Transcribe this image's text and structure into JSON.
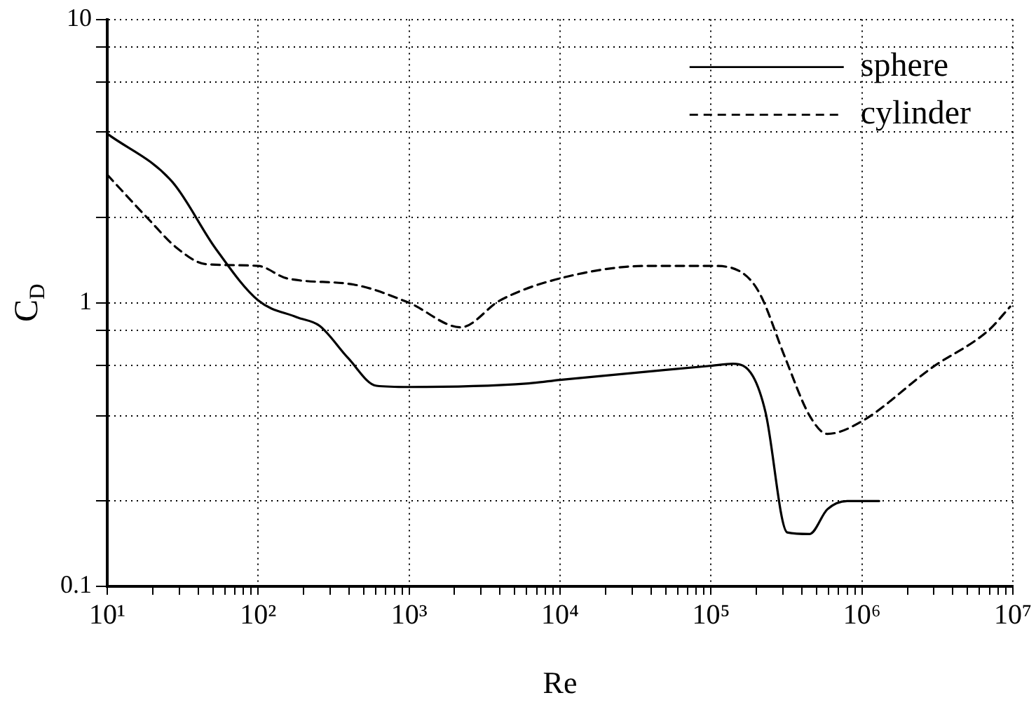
{
  "chart_data": {
    "type": "line",
    "xlabel": "Re",
    "ylabel": "C$_{D}$",
    "log": "xy",
    "grid": true,
    "legend": "top right",
    "marker": "none",
    "xlim": [
      10,
      10000000
    ],
    "ylim": [
      0.1,
      10
    ],
    "xticks": [
      {
        "value": 10,
        "label": "10¹"
      },
      {
        "value": 20,
        "label": null
      },
      {
        "value": 30,
        "label": null
      },
      {
        "value": 40,
        "label": null
      },
      {
        "value": 50,
        "label": null
      },
      {
        "value": 60,
        "label": null
      },
      {
        "value": 70,
        "label": null
      },
      {
        "value": 80,
        "label": null
      },
      {
        "value": 90,
        "label": null
      },
      {
        "value": 100,
        "label": "10²"
      },
      {
        "value": 200,
        "label": null
      },
      {
        "value": 300,
        "label": null
      },
      {
        "value": 400,
        "label": null
      },
      {
        "value": 500,
        "label": null
      },
      {
        "value": 600,
        "label": null
      },
      {
        "value": 700,
        "label": null
      },
      {
        "value": 800,
        "label": null
      },
      {
        "value": 900,
        "label": null
      },
      {
        "value": 1000,
        "label": "10³"
      },
      {
        "value": 2000,
        "label": null
      },
      {
        "value": 3000,
        "label": null
      },
      {
        "value": 4000,
        "label": null
      },
      {
        "value": 5000,
        "label": null
      },
      {
        "value": 6000,
        "label": null
      },
      {
        "value": 7000,
        "label": null
      },
      {
        "value": 8000,
        "label": null
      },
      {
        "value": 9000,
        "label": null
      },
      {
        "value": 10000,
        "label": "10⁴"
      },
      {
        "value": 20000,
        "label": null
      },
      {
        "value": 30000,
        "label": null
      },
      {
        "value": 40000,
        "label": null
      },
      {
        "value": 50000,
        "label": null
      },
      {
        "value": 60000,
        "label": null
      },
      {
        "value": 70000,
        "label": null
      },
      {
        "value": 80000,
        "label": null
      },
      {
        "value": 90000,
        "label": null
      },
      {
        "value": 100000,
        "label": "10⁵"
      },
      {
        "value": 200000,
        "label": null
      },
      {
        "value": 300000,
        "label": null
      },
      {
        "value": 400000,
        "label": null
      },
      {
        "value": 500000,
        "label": null
      },
      {
        "value": 600000,
        "label": null
      },
      {
        "value": 700000,
        "label": null
      },
      {
        "value": 800000,
        "label": null
      },
      {
        "value": 900000,
        "label": null
      },
      {
        "value": 1000000,
        "label": "10⁶"
      },
      {
        "value": 2000000,
        "label": null
      },
      {
        "value": 3000000,
        "label": null
      },
      {
        "value": 4000000,
        "label": null
      },
      {
        "value": 5000000,
        "label": null
      },
      {
        "value": 6000000,
        "label": null
      },
      {
        "value": 7000000,
        "label": null
      },
      {
        "value": 8000000,
        "label": null
      },
      {
        "value": 9000000,
        "label": null
      },
      {
        "value": 10000000,
        "label": "10⁷"
      }
    ],
    "yticks": [
      0.1,
      {
        "value": 0.2,
        "label": null
      },
      {
        "value": 0.4,
        "label": null
      },
      {
        "value": 0.6,
        "label": null
      },
      {
        "value": 0.8,
        "label": null
      },
      1,
      {
        "value": 2,
        "label": null
      },
      {
        "value": 4,
        "label": null
      },
      {
        "value": 6,
        "label": null
      },
      {
        "value": 8,
        "label": null
      },
      10
    ],
    "series": [
      {
        "name": "sphere",
        "color": "#000000",
        "line_style": "solid",
        "x": [
          10,
          27,
          52,
          100,
          180,
          255,
          393,
          607,
          1000,
          6200,
          10000,
          100000,
          140000,
          190000,
          230000,
          320000,
          450000,
          590000,
          800000,
          1300000
        ],
        "values": [
          3.95,
          2.67,
          1.56,
          1.02,
          0.89,
          0.83,
          0.64,
          0.51,
          0.505,
          0.52,
          0.535,
          0.6,
          0.61,
          0.55,
          0.41,
          0.155,
          0.153,
          0.187,
          0.2,
          0.2
        ]
      },
      {
        "name": "cylinder",
        "color": "#000000",
        "line_style": "dashed",
        "x": [
          10,
          19,
          29,
          45,
          100,
          155,
          430,
          1000,
          2200,
          4000,
          10000,
          38000,
          100000,
          160000,
          210000,
          310000,
          450000,
          590000,
          980000,
          2900000,
          6900000,
          9600000
        ],
        "values": [
          2.83,
          1.96,
          1.56,
          1.37,
          1.35,
          1.22,
          1.16,
          1.0,
          0.82,
          1.02,
          1.22,
          1.35,
          1.35,
          1.28,
          1.08,
          0.64,
          0.4,
          0.345,
          0.38,
          0.59,
          0.8,
          0.97
        ]
      }
    ]
  }
}
